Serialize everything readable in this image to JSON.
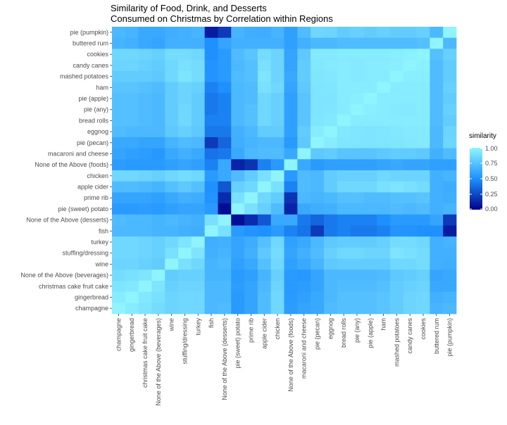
{
  "chart_data": {
    "type": "heatmap",
    "title": "Similarity of  Food, Drink, and Desserts",
    "subtitle": "Consumed on Christmas by Correlation within Regions",
    "xlabel": "",
    "ylabel": "",
    "legend": {
      "title": "similarity",
      "ticks": [
        "1.00",
        "0.75",
        "0.50",
        "0.25",
        "0.00"
      ],
      "placement": "right",
      "low_color": "#00008b",
      "mid_color": "#1e90ff",
      "high_color": "#90f4ff"
    },
    "x_categories": [
      "champagne",
      "gingerbread",
      "christmas cake fruit cake",
      "None of the Above (beverages)",
      "wine",
      "stuffing/dressing",
      "turkey",
      "fish",
      "None of the Above (desserts)",
      "pie (sweet) potato",
      "prime rib",
      "apple cider",
      "chicken",
      "None of the Above (foods)",
      "macaroni and cheese",
      "pie (pecan)",
      "eggnog",
      "bread rolls",
      "pie (any)",
      "pie (apple)",
      "ham",
      "mashed potatoes",
      "candy canes",
      "cookies",
      "buttered rum",
      "pie (pumpkin)"
    ],
    "y_categories": [
      "pie (pumpkin)",
      "buttered rum",
      "cookies",
      "candy canes",
      "mashed potatoes",
      "ham",
      "pie (apple)",
      "pie (any)",
      "bread rolls",
      "eggnog",
      "pie (pecan)",
      "macaroni and cheese",
      "None of the Above (foods)",
      "chicken",
      "apple cider",
      "prime rib",
      "pie (sweet) potato",
      "None of the Above (desserts)",
      "fish",
      "turkey",
      "stuffing/dressing",
      "wine",
      "None of the Above (beverages)",
      "christmas cake fruit cake",
      "gingerbread",
      "champagne"
    ],
    "values": [
      [
        0.7,
        0.68,
        0.62,
        0.62,
        0.65,
        0.66,
        0.68,
        0.1,
        0.2,
        0.68,
        0.65,
        0.64,
        0.68,
        0.58,
        0.72,
        0.85,
        0.84,
        0.8,
        0.82,
        0.8,
        0.82,
        0.8,
        0.8,
        0.82,
        0.7,
        1.0
      ],
      [
        0.68,
        0.66,
        0.62,
        0.6,
        0.66,
        0.66,
        0.66,
        0.5,
        0.6,
        0.66,
        0.66,
        0.66,
        0.66,
        0.58,
        0.66,
        0.7,
        0.7,
        0.72,
        0.72,
        0.72,
        0.72,
        0.72,
        0.72,
        0.74,
        1.0,
        0.7
      ],
      [
        0.86,
        0.86,
        0.84,
        0.82,
        0.88,
        0.88,
        0.86,
        0.5,
        0.55,
        0.72,
        0.76,
        0.88,
        0.84,
        0.6,
        0.78,
        0.95,
        0.95,
        0.96,
        0.96,
        0.96,
        0.96,
        0.97,
        0.98,
        1.0,
        0.74,
        0.82
      ],
      [
        0.84,
        0.84,
        0.82,
        0.8,
        0.86,
        0.9,
        0.88,
        0.52,
        0.55,
        0.7,
        0.74,
        0.9,
        0.84,
        0.6,
        0.8,
        0.94,
        0.95,
        0.96,
        0.95,
        0.96,
        0.96,
        0.97,
        1.0,
        0.98,
        0.72,
        0.8
      ],
      [
        0.8,
        0.8,
        0.8,
        0.78,
        0.86,
        0.92,
        0.88,
        0.52,
        0.55,
        0.72,
        0.74,
        0.92,
        0.84,
        0.62,
        0.8,
        0.93,
        0.94,
        0.96,
        0.95,
        0.96,
        0.96,
        1.0,
        0.97,
        0.97,
        0.72,
        0.8
      ],
      [
        0.76,
        0.76,
        0.74,
        0.72,
        0.8,
        0.84,
        0.82,
        0.45,
        0.5,
        0.7,
        0.72,
        0.9,
        0.86,
        0.6,
        0.78,
        0.92,
        0.93,
        0.96,
        0.96,
        0.96,
        1.0,
        0.96,
        0.96,
        0.96,
        0.72,
        0.82
      ],
      [
        0.74,
        0.74,
        0.72,
        0.7,
        0.8,
        0.84,
        0.8,
        0.42,
        0.45,
        0.7,
        0.72,
        0.86,
        0.82,
        0.58,
        0.76,
        0.92,
        0.92,
        0.96,
        0.97,
        1.0,
        0.96,
        0.96,
        0.96,
        0.96,
        0.72,
        0.8
      ],
      [
        0.74,
        0.74,
        0.72,
        0.7,
        0.8,
        0.86,
        0.8,
        0.42,
        0.45,
        0.7,
        0.74,
        0.86,
        0.82,
        0.58,
        0.76,
        0.92,
        0.93,
        0.96,
        1.0,
        0.97,
        0.96,
        0.95,
        0.95,
        0.96,
        0.72,
        0.82
      ],
      [
        0.74,
        0.74,
        0.72,
        0.7,
        0.8,
        0.86,
        0.8,
        0.45,
        0.45,
        0.7,
        0.74,
        0.86,
        0.82,
        0.58,
        0.76,
        0.93,
        0.94,
        1.0,
        0.96,
        0.96,
        0.96,
        0.96,
        0.96,
        0.96,
        0.72,
        0.8
      ],
      [
        0.72,
        0.7,
        0.7,
        0.7,
        0.78,
        0.82,
        0.78,
        0.42,
        0.42,
        0.66,
        0.7,
        0.8,
        0.8,
        0.58,
        0.8,
        0.96,
        1.0,
        0.94,
        0.93,
        0.92,
        0.93,
        0.94,
        0.95,
        0.95,
        0.7,
        0.84
      ],
      [
        0.62,
        0.62,
        0.6,
        0.6,
        0.68,
        0.72,
        0.7,
        0.2,
        0.35,
        0.65,
        0.68,
        0.7,
        0.7,
        0.55,
        0.78,
        1.0,
        0.96,
        0.93,
        0.92,
        0.92,
        0.92,
        0.93,
        0.94,
        0.95,
        0.7,
        0.85
      ],
      [
        0.6,
        0.58,
        0.56,
        0.54,
        0.62,
        0.66,
        0.62,
        0.4,
        0.42,
        0.62,
        0.7,
        0.72,
        0.72,
        0.62,
        1.0,
        0.78,
        0.8,
        0.76,
        0.76,
        0.76,
        0.78,
        0.8,
        0.8,
        0.78,
        0.66,
        0.72
      ],
      [
        0.56,
        0.55,
        0.55,
        0.55,
        0.58,
        0.6,
        0.58,
        0.45,
        0.62,
        0.12,
        0.18,
        0.45,
        0.55,
        1.0,
        0.62,
        0.55,
        0.58,
        0.58,
        0.58,
        0.58,
        0.6,
        0.62,
        0.6,
        0.6,
        0.58,
        0.58
      ],
      [
        0.86,
        0.86,
        0.84,
        0.82,
        0.86,
        0.88,
        0.86,
        0.55,
        0.62,
        0.72,
        0.8,
        0.9,
        1.0,
        0.55,
        0.72,
        0.7,
        0.8,
        0.82,
        0.82,
        0.82,
        0.86,
        0.84,
        0.84,
        0.84,
        0.66,
        0.68
      ],
      [
        0.72,
        0.72,
        0.7,
        0.68,
        0.74,
        0.78,
        0.74,
        0.5,
        0.3,
        0.82,
        0.86,
        1.0,
        0.9,
        0.45,
        0.72,
        0.7,
        0.8,
        0.86,
        0.86,
        0.86,
        0.9,
        0.92,
        0.9,
        0.88,
        0.66,
        0.64
      ],
      [
        0.6,
        0.6,
        0.6,
        0.58,
        0.62,
        0.66,
        0.64,
        0.52,
        0.15,
        0.9,
        1.0,
        0.86,
        0.8,
        0.18,
        0.7,
        0.68,
        0.7,
        0.74,
        0.74,
        0.72,
        0.72,
        0.74,
        0.74,
        0.76,
        0.66,
        0.65
      ],
      [
        0.55,
        0.55,
        0.56,
        0.55,
        0.58,
        0.6,
        0.6,
        0.55,
        0.05,
        1.0,
        0.9,
        0.82,
        0.72,
        0.12,
        0.62,
        0.65,
        0.66,
        0.7,
        0.7,
        0.7,
        0.7,
        0.72,
        0.7,
        0.72,
        0.66,
        0.68
      ],
      [
        0.72,
        0.7,
        0.7,
        0.68,
        0.7,
        0.68,
        0.66,
        0.9,
        1.0,
        0.05,
        0.15,
        0.3,
        0.62,
        0.62,
        0.42,
        0.35,
        0.42,
        0.45,
        0.45,
        0.45,
        0.5,
        0.55,
        0.55,
        0.55,
        0.6,
        0.2
      ],
      [
        0.7,
        0.7,
        0.7,
        0.68,
        0.68,
        0.66,
        0.65,
        1.0,
        0.9,
        0.55,
        0.52,
        0.5,
        0.55,
        0.45,
        0.4,
        0.2,
        0.42,
        0.45,
        0.42,
        0.42,
        0.45,
        0.52,
        0.52,
        0.5,
        0.5,
        0.1
      ],
      [
        0.86,
        0.86,
        0.84,
        0.82,
        0.86,
        0.92,
        1.0,
        0.65,
        0.66,
        0.6,
        0.64,
        0.74,
        0.86,
        0.58,
        0.62,
        0.7,
        0.78,
        0.8,
        0.8,
        0.8,
        0.82,
        0.88,
        0.88,
        0.86,
        0.66,
        0.68
      ],
      [
        0.86,
        0.86,
        0.84,
        0.82,
        0.9,
        1.0,
        0.92,
        0.66,
        0.68,
        0.6,
        0.66,
        0.78,
        0.88,
        0.6,
        0.66,
        0.72,
        0.82,
        0.86,
        0.86,
        0.84,
        0.84,
        0.92,
        0.9,
        0.88,
        0.66,
        0.66
      ],
      [
        0.84,
        0.84,
        0.82,
        0.8,
        1.0,
        0.9,
        0.86,
        0.68,
        0.7,
        0.58,
        0.62,
        0.74,
        0.86,
        0.58,
        0.62,
        0.68,
        0.78,
        0.8,
        0.8,
        0.8,
        0.8,
        0.86,
        0.86,
        0.88,
        0.66,
        0.65
      ],
      [
        0.88,
        0.9,
        0.92,
        1.0,
        0.8,
        0.82,
        0.82,
        0.68,
        0.68,
        0.55,
        0.58,
        0.68,
        0.82,
        0.55,
        0.54,
        0.6,
        0.7,
        0.7,
        0.7,
        0.7,
        0.72,
        0.78,
        0.8,
        0.82,
        0.6,
        0.62
      ],
      [
        0.92,
        0.94,
        1.0,
        0.92,
        0.82,
        0.84,
        0.84,
        0.7,
        0.7,
        0.56,
        0.6,
        0.7,
        0.84,
        0.55,
        0.56,
        0.6,
        0.7,
        0.72,
        0.72,
        0.72,
        0.74,
        0.8,
        0.82,
        0.84,
        0.62,
        0.62
      ],
      [
        0.96,
        1.0,
        0.94,
        0.9,
        0.84,
        0.86,
        0.86,
        0.7,
        0.7,
        0.55,
        0.6,
        0.72,
        0.86,
        0.55,
        0.58,
        0.62,
        0.7,
        0.74,
        0.74,
        0.74,
        0.76,
        0.8,
        0.84,
        0.86,
        0.66,
        0.68
      ],
      [
        1.0,
        0.96,
        0.92,
        0.88,
        0.84,
        0.86,
        0.86,
        0.7,
        0.72,
        0.55,
        0.6,
        0.72,
        0.86,
        0.56,
        0.6,
        0.62,
        0.72,
        0.74,
        0.74,
        0.74,
        0.76,
        0.8,
        0.84,
        0.86,
        0.68,
        0.7
      ]
    ]
  }
}
